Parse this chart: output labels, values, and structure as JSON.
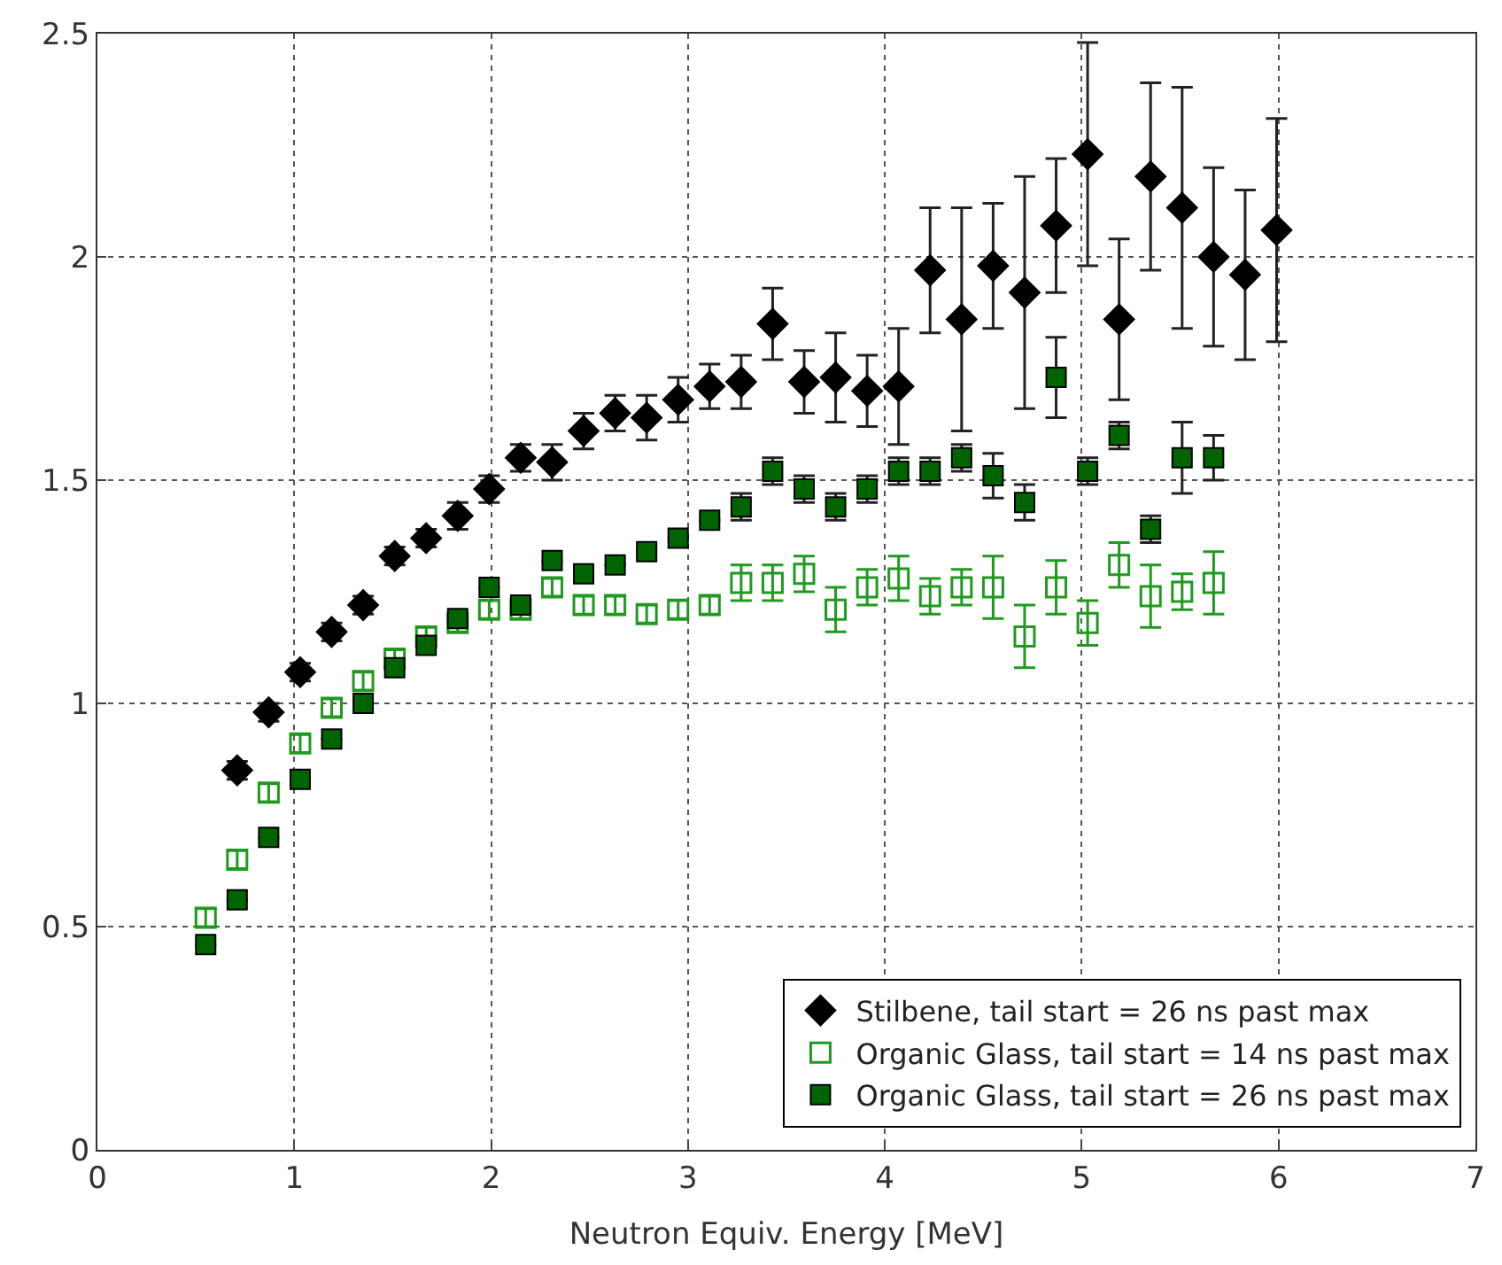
{
  "chart_data": {
    "type": "scatter",
    "xlabel": "Neutron Equiv. Energy [MeV]",
    "xlim": [
      0,
      7
    ],
    "xticks": [
      0,
      1,
      2,
      3,
      4,
      5,
      6,
      7
    ],
    "ylim": [
      0,
      2.5
    ],
    "yticks": [
      0,
      0.5,
      1,
      1.5,
      2,
      2.5
    ],
    "grid": true,
    "legend": "bottom right",
    "series": [
      {
        "name": "Stilbene, tail start = 26 ns past max",
        "color": "#000000",
        "marker": "diamond",
        "x": [
          0.71,
          0.87,
          1.03,
          1.19,
          1.35,
          1.51,
          1.67,
          1.83,
          1.99,
          2.15,
          2.31,
          2.47,
          2.63,
          2.79,
          2.95,
          3.11,
          3.27,
          3.43,
          3.59,
          3.75,
          3.91,
          4.07,
          4.23,
          4.39,
          4.55,
          4.71,
          4.87,
          5.03,
          5.19,
          5.35,
          5.51,
          5.67,
          5.83,
          5.99
        ],
        "values": [
          0.85,
          0.98,
          1.07,
          1.16,
          1.22,
          1.33,
          1.37,
          1.42,
          1.48,
          1.55,
          1.54,
          1.61,
          1.65,
          1.64,
          1.68,
          1.71,
          1.72,
          1.85,
          1.72,
          1.73,
          1.7,
          1.71,
          1.97,
          1.86,
          1.98,
          1.92,
          2.07,
          2.23,
          1.86,
          2.18,
          2.11,
          2.0,
          1.96,
          2.06
        ],
        "errors": [
          0.02,
          0.02,
          0.02,
          0.02,
          0.02,
          0.02,
          0.02,
          0.03,
          0.03,
          0.03,
          0.04,
          0.04,
          0.04,
          0.05,
          0.05,
          0.05,
          0.06,
          0.08,
          0.07,
          0.1,
          0.08,
          0.13,
          0.14,
          0.25,
          0.14,
          0.26,
          0.15,
          0.25,
          0.18,
          0.21,
          0.27,
          0.2,
          0.19,
          0.25
        ]
      },
      {
        "name": "Organic Glass, tail start = 14 ns past max",
        "color": "#1f9a1f",
        "marker": "square",
        "x": [
          0.55,
          0.71,
          0.87,
          1.03,
          1.19,
          1.35,
          1.51,
          1.67,
          1.83,
          1.99,
          2.15,
          2.31,
          2.47,
          2.63,
          2.79,
          2.95,
          3.11,
          3.27,
          3.43,
          3.59,
          3.75,
          3.91,
          4.07,
          4.23,
          4.39,
          4.55,
          4.71,
          4.87,
          5.03,
          5.19,
          5.35,
          5.51,
          5.67
        ],
        "values": [
          0.52,
          0.65,
          0.8,
          0.91,
          0.99,
          1.05,
          1.1,
          1.15,
          1.18,
          1.21,
          1.21,
          1.26,
          1.22,
          1.22,
          1.2,
          1.21,
          1.22,
          1.27,
          1.27,
          1.29,
          1.21,
          1.26,
          1.28,
          1.24,
          1.26,
          1.26,
          1.15,
          1.26,
          1.18,
          1.31,
          1.24,
          1.25,
          1.27
        ],
        "errors": [
          0.02,
          0.02,
          0.02,
          0.02,
          0.02,
          0.02,
          0.02,
          0.02,
          0.02,
          0.02,
          0.02,
          0.02,
          0.02,
          0.02,
          0.02,
          0.02,
          0.02,
          0.04,
          0.04,
          0.04,
          0.05,
          0.04,
          0.05,
          0.04,
          0.04,
          0.07,
          0.07,
          0.06,
          0.05,
          0.05,
          0.07,
          0.04,
          0.07
        ]
      },
      {
        "name": "Organic Glass, tail start = 26 ns past max",
        "color": "#006400",
        "marker": "square",
        "x": [
          0.55,
          0.71,
          0.87,
          1.03,
          1.19,
          1.35,
          1.51,
          1.67,
          1.83,
          1.99,
          2.15,
          2.31,
          2.47,
          2.63,
          2.79,
          2.95,
          3.11,
          3.27,
          3.43,
          3.59,
          3.75,
          3.91,
          4.07,
          4.23,
          4.39,
          4.55,
          4.71,
          4.87,
          5.03,
          5.19,
          5.35,
          5.51,
          5.67
        ],
        "values": [
          0.46,
          0.56,
          0.7,
          0.83,
          0.92,
          1.0,
          1.08,
          1.13,
          1.19,
          1.26,
          1.22,
          1.32,
          1.29,
          1.31,
          1.34,
          1.37,
          1.41,
          1.44,
          1.52,
          1.48,
          1.44,
          1.48,
          1.52,
          1.52,
          1.55,
          1.51,
          1.45,
          1.73,
          1.52,
          1.6,
          1.39,
          1.55,
          1.55
        ],
        "errors": [
          null,
          null,
          null,
          null,
          null,
          null,
          null,
          null,
          null,
          null,
          null,
          null,
          null,
          null,
          null,
          null,
          null,
          0.03,
          0.03,
          0.03,
          0.03,
          0.03,
          0.03,
          0.03,
          0.03,
          0.05,
          0.04,
          0.09,
          0.03,
          0.03,
          0.03,
          0.08,
          0.05
        ]
      }
    ]
  }
}
